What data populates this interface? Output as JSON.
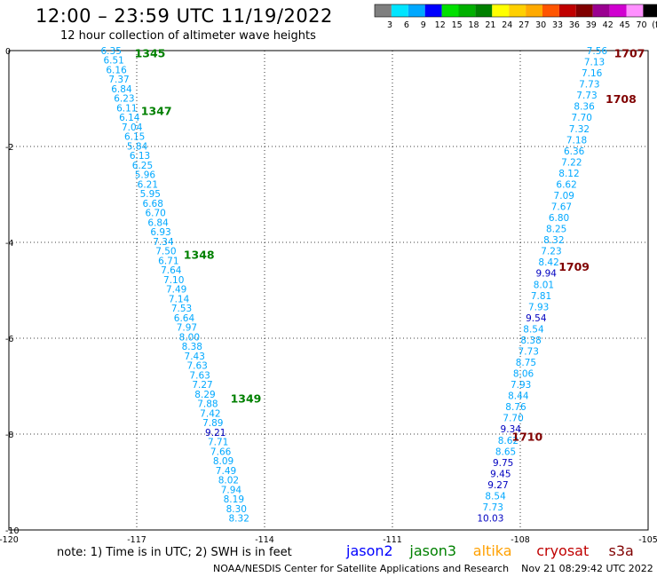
{
  "header": {
    "title": "12:00 – 23:59 UTC 11/19/2022",
    "subtitle": "12 hour collection of altimeter wave heights"
  },
  "colorbar": {
    "labels": [
      "3",
      "6",
      "9",
      "12",
      "15",
      "18",
      "21",
      "24",
      "27",
      "30",
      "33",
      "36",
      "39",
      "42",
      "45",
      "70",
      "(ft)"
    ],
    "colors": [
      "#7f7f7f",
      "#00e5ff",
      "#00a8ff",
      "#0000ff",
      "#00e000",
      "#00b000",
      "#008000",
      "#ffff00",
      "#ffd000",
      "#ffaa00",
      "#ff5500",
      "#c00000",
      "#800000",
      "#9a0090",
      "#d000d0",
      "#ff90ff",
      "#000000"
    ]
  },
  "note": "note:  1) Time is in UTC;  2) SWH is in feet",
  "footer": "NOAA/NESDIS Center for Satellite Applications and Research    Nov 21 08:29:42 UTC 2022",
  "legend": [
    {
      "name": "jason2",
      "color": "#0000ff"
    },
    {
      "name": "jason3",
      "color": "#008000"
    },
    {
      "name": "altika",
      "color": "#ffa000"
    },
    {
      "name": "cryosat",
      "color": "#c00000"
    },
    {
      "name": "s3a",
      "color": "#800000"
    }
  ],
  "chart_data": {
    "type": "scatter",
    "title": "12:00 – 23:59 UTC 11/19/2022",
    "subtitle": "12 hour collection of altimeter wave heights",
    "xlim": [
      -120,
      -105
    ],
    "ylim": [
      -10,
      0
    ],
    "x_ticks": [
      "-120",
      "-117",
      "-114",
      "-111",
      "-108",
      "-105"
    ],
    "y_ticks": [
      "0",
      "-2",
      "-4",
      "-6",
      "-8",
      "-10"
    ],
    "grid": true,
    "track_left": {
      "start": [
        -117.6,
        0
      ],
      "end": [
        -114.6,
        -9.75
      ],
      "values": [
        "6.35",
        "6.51",
        "6.16",
        "7.37",
        "6.84",
        "6.23",
        "6.11",
        "6.14",
        "7.04",
        "6.15",
        "5.84",
        "6.13",
        "6.25",
        "5.96",
        "6.21",
        "5.95",
        "6.68",
        "6.70",
        "6.84",
        "6.93",
        "7.34",
        "7.50",
        "6.71",
        "7.64",
        "7.10",
        "7.49",
        "7.14",
        "7.53",
        "6.64",
        "7.97",
        "8.00",
        "8.38",
        "7.43",
        "7.63",
        "7.63",
        "7.27",
        "8.29",
        "7.88",
        "7.42",
        "7.89",
        "9.21",
        "7.71",
        "7.66",
        "8.09",
        "7.49",
        "8.02",
        "7.94",
        "8.19",
        "8.30",
        "8.32"
      ],
      "colors": [
        "#00a8ff",
        "#00a8ff",
        "#00a8ff",
        "#00a8ff",
        "#00a8ff",
        "#00a8ff",
        "#00a8ff",
        "#00a8ff",
        "#00a8ff",
        "#00a8ff",
        "#00a8ff",
        "#00a8ff",
        "#00a8ff",
        "#00a8ff",
        "#00a8ff",
        "#00a8ff",
        "#00a8ff",
        "#00a8ff",
        "#00a8ff",
        "#00a8ff",
        "#00a8ff",
        "#00a8ff",
        "#00a8ff",
        "#00a8ff",
        "#00a8ff",
        "#00a8ff",
        "#00a8ff",
        "#00a8ff",
        "#00a8ff",
        "#00a8ff",
        "#00a8ff",
        "#00a8ff",
        "#00a8ff",
        "#00a8ff",
        "#00a8ff",
        "#00a8ff",
        "#00a8ff",
        "#00a8ff",
        "#00a8ff",
        "#00a8ff",
        "#0000c0",
        "#00a8ff",
        "#00a8ff",
        "#00a8ff",
        "#00a8ff",
        "#00a8ff",
        "#00a8ff",
        "#00a8ff",
        "#00a8ff",
        "#00a8ff"
      ]
    },
    "track_right": {
      "start": [
        -106.2,
        0
      ],
      "end": [
        -108.7,
        -9.75
      ],
      "values": [
        "7.56",
        "7.13",
        "7.16",
        "7.73",
        "7.73",
        "8.36",
        "7.70",
        "7.32",
        "7.18",
        "6.36",
        "7.22",
        "8.12",
        "6.62",
        "7.09",
        "7.67",
        "6.80",
        "8.25",
        "8.32",
        "7.23",
        "8.42",
        "9.94",
        "8.01",
        "7.81",
        "7.93",
        "9.54",
        "8.54",
        "8.38",
        "7.73",
        "8.75",
        "8.06",
        "7.93",
        "8.44",
        "8.76",
        "7.70",
        "9.34",
        "8.62",
        "8.65",
        "9.75",
        "9.45",
        "9.27",
        "8.54",
        "7.73",
        "10.03"
      ],
      "colors": [
        "#00a8ff",
        "#00a8ff",
        "#00a8ff",
        "#00a8ff",
        "#00a8ff",
        "#00a8ff",
        "#00a8ff",
        "#00a8ff",
        "#00a8ff",
        "#00a8ff",
        "#00a8ff",
        "#00a8ff",
        "#00a8ff",
        "#00a8ff",
        "#00a8ff",
        "#00a8ff",
        "#00a8ff",
        "#00a8ff",
        "#00a8ff",
        "#00a8ff",
        "#0000c0",
        "#00a8ff",
        "#00a8ff",
        "#00a8ff",
        "#0000c0",
        "#00a8ff",
        "#00a8ff",
        "#00a8ff",
        "#00a8ff",
        "#00a8ff",
        "#00a8ff",
        "#00a8ff",
        "#00a8ff",
        "#00a8ff",
        "#0000c0",
        "#00a8ff",
        "#00a8ff",
        "#0000c0",
        "#0000c0",
        "#0000c0",
        "#00a8ff",
        "#00a8ff",
        "#0000c0"
      ]
    },
    "time_labels": [
      {
        "text": "1345",
        "x": -117.05,
        "y": -0.05,
        "color": "#008000"
      },
      {
        "text": "1347",
        "x": -116.9,
        "y": -1.25,
        "color": "#008000"
      },
      {
        "text": "1348",
        "x": -115.9,
        "y": -4.25,
        "color": "#008000"
      },
      {
        "text": "1349",
        "x": -114.8,
        "y": -7.25,
        "color": "#008000"
      },
      {
        "text": "1707",
        "x": -105.8,
        "y": -0.05,
        "color": "#800000"
      },
      {
        "text": "1708",
        "x": -106.0,
        "y": -1.0,
        "color": "#800000"
      },
      {
        "text": "1709",
        "x": -107.1,
        "y": -4.5,
        "color": "#800000"
      },
      {
        "text": "1710",
        "x": -108.2,
        "y": -8.05,
        "color": "#800000"
      }
    ]
  }
}
